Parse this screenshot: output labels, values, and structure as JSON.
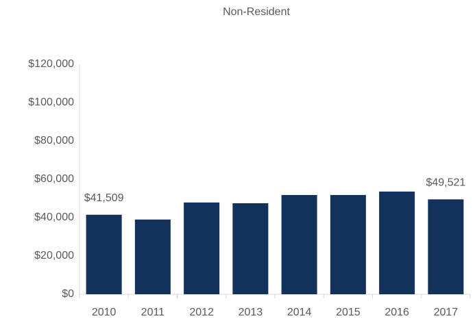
{
  "chart_data": {
    "type": "bar",
    "title": "Non-Resident",
    "categories": [
      "2010",
      "2011",
      "2012",
      "2013",
      "2014",
      "2015",
      "2016",
      "2017"
    ],
    "values": [
      41509,
      39000,
      47900,
      47500,
      51800,
      51800,
      53600,
      49521
    ],
    "value_labels": [
      "$41,509",
      null,
      null,
      null,
      null,
      null,
      null,
      "$49,521"
    ],
    "color": "#13325b",
    "ylim": [
      0,
      120000
    ],
    "yticks": [
      {
        "value": 0,
        "label": "$0"
      },
      {
        "value": 20000,
        "label": "$20,000"
      },
      {
        "value": 40000,
        "label": "$40,000"
      },
      {
        "value": 60000,
        "label": "$60,000"
      },
      {
        "value": 80000,
        "label": "$80,000"
      },
      {
        "value": 100000,
        "label": "$100,000"
      },
      {
        "value": 120000,
        "label": "$120,000"
      }
    ],
    "grid": false
  }
}
